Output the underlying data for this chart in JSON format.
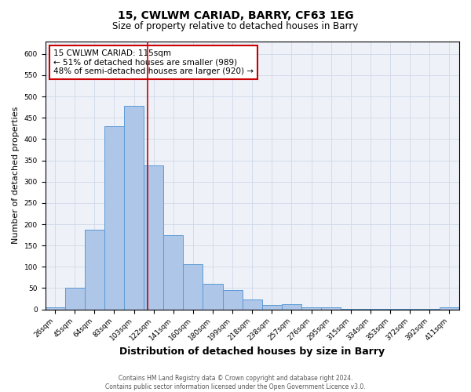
{
  "title1": "15, CWLWM CARIAD, BARRY, CF63 1EG",
  "title2": "Size of property relative to detached houses in Barry",
  "xlabel": "Distribution of detached houses by size in Barry",
  "ylabel": "Number of detached properties",
  "categories": [
    "26sqm",
    "45sqm",
    "64sqm",
    "83sqm",
    "103sqm",
    "122sqm",
    "141sqm",
    "160sqm",
    "180sqm",
    "199sqm",
    "218sqm",
    "238sqm",
    "257sqm",
    "276sqm",
    "295sqm",
    "315sqm",
    "334sqm",
    "353sqm",
    "372sqm",
    "392sqm",
    "411sqm"
  ],
  "values": [
    5,
    50,
    188,
    430,
    478,
    338,
    175,
    107,
    60,
    45,
    23,
    10,
    13,
    5,
    5,
    2,
    2,
    1,
    1,
    1,
    5
  ],
  "bar_color": "#aec6e8",
  "bar_edge_color": "#5b9bd5",
  "vline_x": 4.68,
  "vline_color": "#cc0000",
  "annotation_text": "15 CWLWM CARIAD: 115sqm\n← 51% of detached houses are smaller (989)\n48% of semi-detached houses are larger (920) →",
  "annotation_box_color": "#ffffff",
  "annotation_box_edge": "#cc0000",
  "ylim": [
    0,
    630
  ],
  "yticks": [
    0,
    50,
    100,
    150,
    200,
    250,
    300,
    350,
    400,
    450,
    500,
    550,
    600
  ],
  "footnote": "Contains HM Land Registry data © Crown copyright and database right 2024.\nContains public sector information licensed under the Open Government Licence v3.0.",
  "grid_color": "#d0d8e8",
  "bg_color": "#eef2f8",
  "title1_fontsize": 10,
  "title2_fontsize": 8.5,
  "xlabel_fontsize": 9,
  "ylabel_fontsize": 8,
  "tick_fontsize": 6.5,
  "annotation_fontsize": 7.5,
  "footnote_fontsize": 5.5
}
